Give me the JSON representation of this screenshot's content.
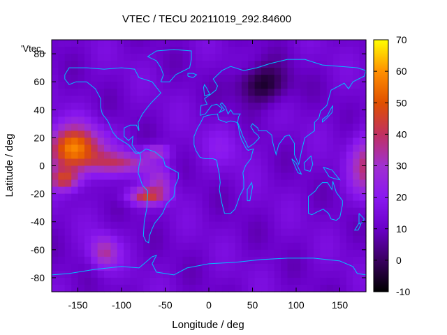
{
  "title": "VTEC / TECU 20211019_292.84600",
  "overlay_label": "'Vtec_",
  "chart_data": {
    "type": "heatmap",
    "title": "VTEC / TECU 20211019_292.84600",
    "xlabel": "Longitude / deg",
    "ylabel": "Latitude / deg",
    "xlim": [
      -180,
      180
    ],
    "ylim": [
      -90,
      90
    ],
    "x_ticks": [
      -150,
      -100,
      -50,
      0,
      50,
      100,
      150
    ],
    "y_ticks": [
      -80,
      -60,
      -40,
      -20,
      0,
      20,
      40,
      60,
      80
    ],
    "colorbar": {
      "range": [
        -10,
        70
      ],
      "ticks": [
        -10,
        0,
        10,
        20,
        30,
        40,
        50,
        60,
        70
      ],
      "palette": [
        "#000000",
        "#3a0060",
        "#6a00c8",
        "#8a18f0",
        "#a030d0",
        "#c03060",
        "#e05000",
        "#ff9000",
        "#ffff00"
      ]
    },
    "background_tecu": 12,
    "features": [
      {
        "lon": -155,
        "lat": 12,
        "lon_radius": 32,
        "lat_radius": 16,
        "peak_tecu": 58
      },
      {
        "lon": -165,
        "lat": -10,
        "lon_radius": 18,
        "lat_radius": 8,
        "peak_tecu": 40
      },
      {
        "lon": -100,
        "lat": 2,
        "lon_radius": 38,
        "lat_radius": 8,
        "peak_tecu": 34
      },
      {
        "lon": -60,
        "lat": 10,
        "lon_radius": 15,
        "lat_radius": 5,
        "peak_tecu": 30
      },
      {
        "lon": -72,
        "lat": -22,
        "lon_radius": 22,
        "lat_radius": 6,
        "peak_tecu": 40
      },
      {
        "lon": -55,
        "lat": -12,
        "lon_radius": 15,
        "lat_radius": 10,
        "peak_tecu": 28
      },
      {
        "lon": -120,
        "lat": -62,
        "lon_radius": 16,
        "lat_radius": 12,
        "peak_tecu": 34
      },
      {
        "lon": 180,
        "lat": 0,
        "lon_radius": 18,
        "lat_radius": 22,
        "peak_tecu": 36
      },
      {
        "lon": 60,
        "lat": 58,
        "lon_radius": 30,
        "lat_radius": 14,
        "peak_tecu": -6
      },
      {
        "lon": 20,
        "lat": 14,
        "lon_radius": 30,
        "lat_radius": 16,
        "peak_tecu": 18
      }
    ],
    "coastline_color": "#00c0ff"
  }
}
